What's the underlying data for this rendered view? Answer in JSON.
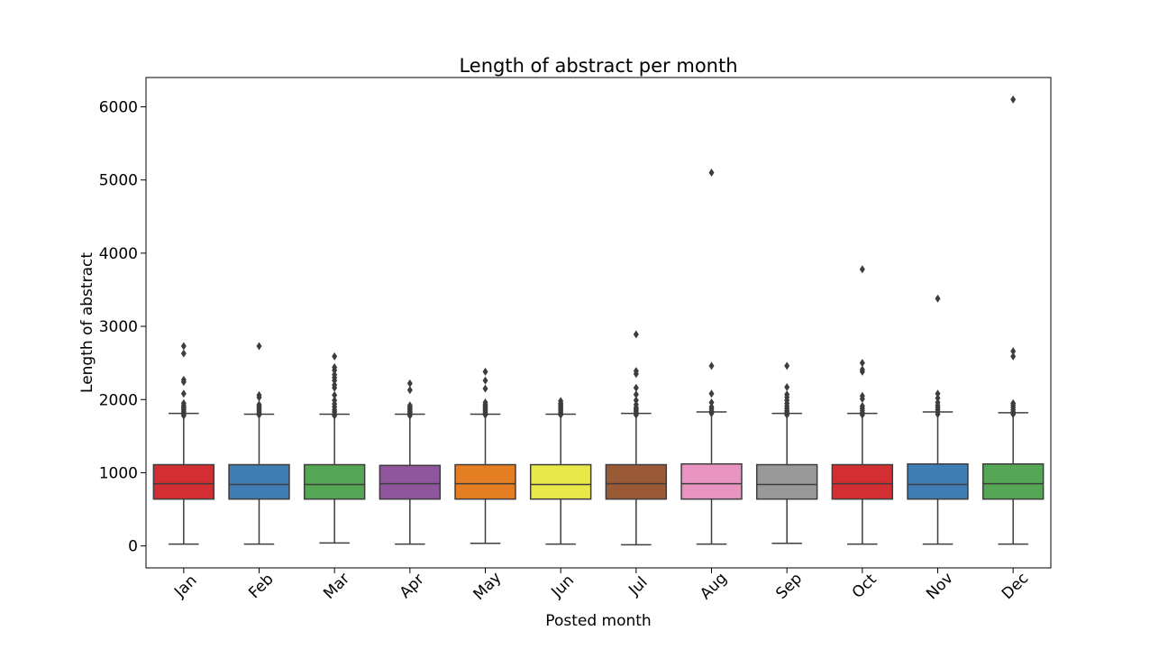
{
  "chart_data": {
    "type": "box",
    "title": "Length of abstract per month",
    "xlabel": "Posted month",
    "ylabel": "Length of abstract",
    "ylim": [
      -300,
      6400
    ],
    "yticks": [
      "0",
      "1000",
      "2000",
      "3000",
      "4000",
      "5000",
      "6000"
    ],
    "grid": false,
    "boxes": [
      {
        "category": "Jan",
        "color": "#d32f32",
        "q1": 640,
        "median": 850,
        "q3": 1110,
        "whisker_low": 25,
        "whisker_high": 1810,
        "outliers": [
          1780,
          1800,
          1820,
          1840,
          1860,
          1880,
          1900,
          1920,
          1950,
          2080,
          2240,
          2270,
          2630,
          2730
        ]
      },
      {
        "category": "Feb",
        "color": "#3f7db5",
        "q1": 640,
        "median": 840,
        "q3": 1110,
        "whisker_low": 25,
        "whisker_high": 1800,
        "outliers": [
          1790,
          1810,
          1830,
          1850,
          1870,
          1890,
          1910,
          1930,
          2030,
          2060,
          2730
        ]
      },
      {
        "category": "Mar",
        "color": "#56a755",
        "q1": 640,
        "median": 840,
        "q3": 1110,
        "whisker_low": 40,
        "whisker_high": 1800,
        "outliers": [
          1780,
          1800,
          1830,
          1860,
          1900,
          1940,
          1990,
          2060,
          2160,
          2200,
          2260,
          2300,
          2340,
          2400,
          2440,
          2590
        ]
      },
      {
        "category": "Apr",
        "color": "#8f559d",
        "q1": 640,
        "median": 850,
        "q3": 1100,
        "whisker_low": 25,
        "whisker_high": 1800,
        "outliers": [
          1780,
          1800,
          1820,
          1840,
          1860,
          1880,
          1900,
          1920,
          2130,
          2220
        ]
      },
      {
        "category": "May",
        "color": "#e57e22",
        "q1": 640,
        "median": 850,
        "q3": 1110,
        "whisker_low": 35,
        "whisker_high": 1800,
        "outliers": [
          1790,
          1810,
          1830,
          1850,
          1870,
          1890,
          1910,
          1930,
          1960,
          2150,
          2260,
          2380
        ]
      },
      {
        "category": "Jun",
        "color": "#e9e84b",
        "q1": 640,
        "median": 840,
        "q3": 1110,
        "whisker_low": 25,
        "whisker_high": 1800,
        "outliers": [
          1790,
          1810,
          1830,
          1850,
          1870,
          1890,
          1910,
          1930,
          1950,
          1980
        ]
      },
      {
        "category": "Jul",
        "color": "#9b5a36",
        "q1": 640,
        "median": 850,
        "q3": 1110,
        "whisker_low": 15,
        "whisker_high": 1810,
        "outliers": [
          1790,
          1810,
          1830,
          1850,
          1870,
          1890,
          1930,
          1990,
          2070,
          2160,
          2350,
          2390,
          2890
        ]
      },
      {
        "category": "Aug",
        "color": "#e993c1",
        "q1": 640,
        "median": 850,
        "q3": 1120,
        "whisker_low": 25,
        "whisker_high": 1830,
        "outliers": [
          1810,
          1840,
          1870,
          1900,
          1960,
          2080,
          2460,
          5100
        ]
      },
      {
        "category": "Sep",
        "color": "#999999",
        "q1": 640,
        "median": 840,
        "q3": 1110,
        "whisker_low": 35,
        "whisker_high": 1810,
        "outliers": [
          1790,
          1810,
          1830,
          1850,
          1880,
          1910,
          1950,
          1990,
          2030,
          2070,
          2170,
          2460
        ]
      },
      {
        "category": "Oct",
        "color": "#d32f32",
        "q1": 640,
        "median": 850,
        "q3": 1110,
        "whisker_low": 25,
        "whisker_high": 1810,
        "outliers": [
          1790,
          1820,
          1850,
          1880,
          1910,
          2010,
          2050,
          2380,
          2410,
          2500,
          3780
        ]
      },
      {
        "category": "Nov",
        "color": "#3f7db5",
        "q1": 640,
        "median": 840,
        "q3": 1120,
        "whisker_low": 25,
        "whisker_high": 1830,
        "outliers": [
          1800,
          1830,
          1860,
          1890,
          1920,
          1960,
          2020,
          2080,
          3380
        ]
      },
      {
        "category": "Dec",
        "color": "#56a755",
        "q1": 640,
        "median": 850,
        "q3": 1120,
        "whisker_low": 25,
        "whisker_high": 1820,
        "outliers": [
          1800,
          1830,
          1860,
          1890,
          1920,
          1950,
          2590,
          2660,
          6100
        ]
      }
    ]
  }
}
